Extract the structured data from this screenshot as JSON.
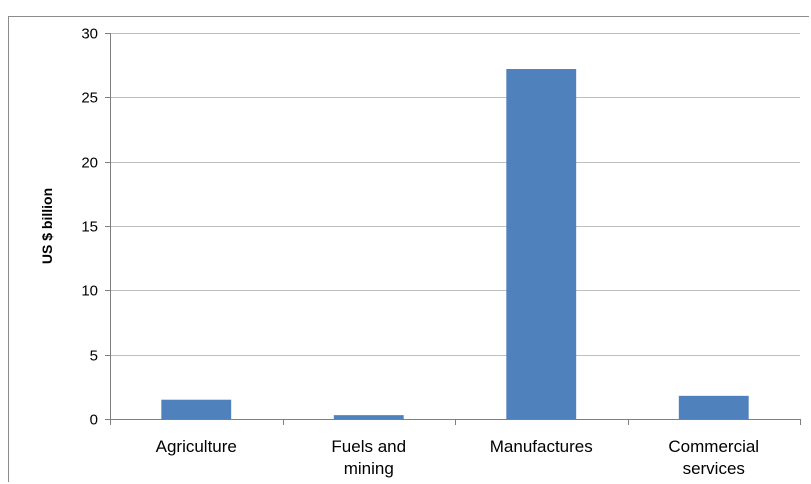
{
  "chart_data": {
    "type": "bar",
    "title": "",
    "xlabel": "",
    "ylabel": "US $ billion",
    "categories": [
      [
        "Agriculture"
      ],
      [
        "Fuels and",
        "mining"
      ],
      [
        "Manufactures"
      ],
      [
        "Commercial",
        "services"
      ]
    ],
    "values": [
      1.5,
      0.3,
      27.2,
      1.8
    ],
    "ylim": [
      0,
      30
    ],
    "yticks": [
      0,
      5,
      10,
      15,
      20,
      25,
      30
    ],
    "grid": true,
    "legend": "none",
    "bar_color": "#4f81bd",
    "grid_color": "#bfbfbf"
  }
}
